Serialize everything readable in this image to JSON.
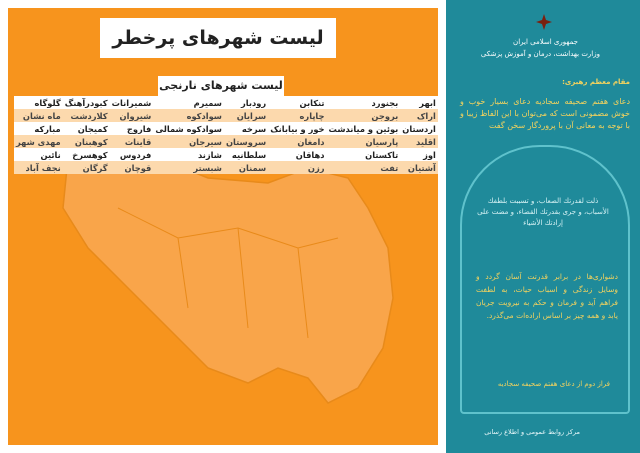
{
  "left": {
    "title": "لیست شهرهای پرخطر",
    "subtitle": "لیست شهرهای نارنجی",
    "rows": [
      [
        "ابهر",
        "بجنورد",
        "تنکابن",
        "رودبار",
        "سمیرم",
        "شمیرانات",
        "کبودرآهنگ",
        "گلوگاه"
      ],
      [
        "اراک",
        "بروجن",
        "چاپاره",
        "سرایان",
        "سوادکوه",
        "شیروان",
        "کلاردشت",
        "ماه نشان"
      ],
      [
        "اردستان",
        "بوئین و میاندشت",
        "خور و بیابانک",
        "سرخه",
        "سوادکوه شمالی",
        "فاروج",
        "کمیجان",
        "مبارکه"
      ],
      [
        "اقلید",
        "پارسیان",
        "دامغان",
        "سروستان",
        "سیرجان",
        "قاینات",
        "کوهبنان",
        "مهدی شهر"
      ],
      [
        "اوز",
        "تاکستان",
        "دهاقان",
        "سلطانیه",
        "شازند",
        "فردوس",
        "کوهسرخ",
        "نائین"
      ],
      [
        "آشتیان",
        "تفت",
        "رزن",
        "سمنان",
        "شبستر",
        "قوچان",
        "گرگان",
        "نجف آباد"
      ]
    ]
  },
  "right": {
    "country": "جمهوری اسلامی ایران",
    "ministry": "وزارت بهداشت، درمان و آموزش پزشکی",
    "speaker": "مقام معظم رهبری:",
    "quote": "دعای هفتم صحیفه سجادیه دعای بسیار خوب و خوش مضمونی است که می‌توان با این الفاظ زیبا و با توجه به معانی آن با پروردگار سخن گفت",
    "arabic": "ذلت لقدرتك الصعاب، و تسببت بلطفك الأسباب، و جرى بقدرتك القضاء، و مضت على إرادتك الأشياء",
    "translation": "دشواری‌ها در برابر قدرتت آسان گردد و وسایل زندگی و اسباب حیات، به لطفت فراهم آید و فرمان و حکم به نیرویت جریان یابد و همه چیز بر اساس اراده‌ات می‌گذرد.",
    "source": "فراز دوم از دعای هفتم صحیفه سجادیه",
    "footer": "مرکز روابط عمومی و اطلاع رسانی"
  }
}
